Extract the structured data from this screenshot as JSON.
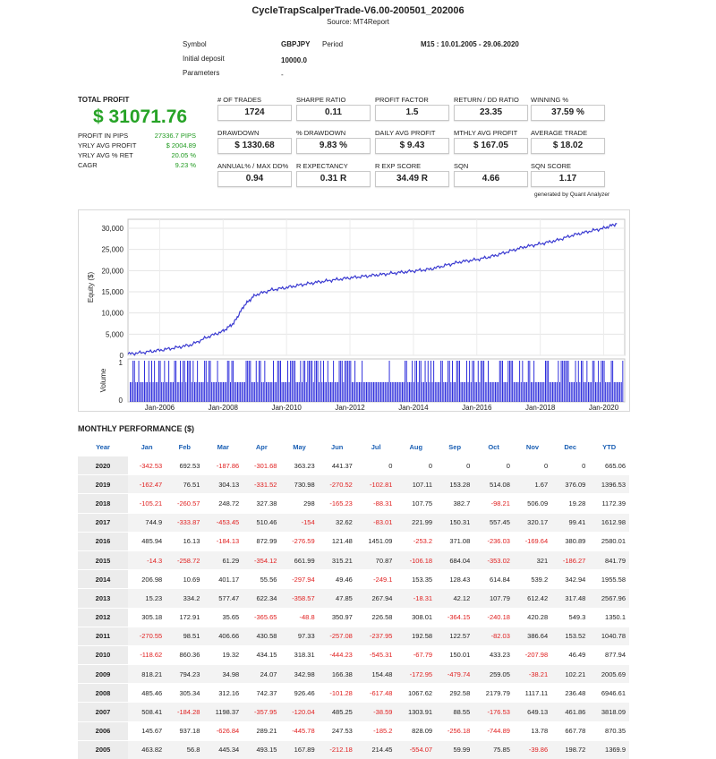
{
  "title": "CycleTrapScalperTrade-V6.00-200501_202006",
  "source": "Source: MT4Report",
  "info": {
    "symbol_label": "Symbol",
    "symbol_value": "GBPJPY",
    "period_label": "Period",
    "period_value": "M15 : 10.01.2005 - 29.06.2020",
    "deposit_label": "Initial deposit",
    "deposit_value": "10000.0",
    "params_label": "Parameters",
    "params_value": "-"
  },
  "profit": {
    "label": "TOTAL PROFIT",
    "value": "$ 31071.76",
    "rows": [
      {
        "label": "PROFIT IN PIPS",
        "value": "27336.7 PIPS"
      },
      {
        "label": "YRLY AVG PROFIT",
        "value": "$ 2004.89"
      },
      {
        "label": "YRLY AVG % RET",
        "value": "20.05 %"
      },
      {
        "label": "CAGR",
        "value": "9.23 %"
      }
    ]
  },
  "metrics": [
    {
      "label": "# OF TRADES",
      "value": "1724"
    },
    {
      "label": "SHARPE RATIO",
      "value": "0.11"
    },
    {
      "label": "PROFIT FACTOR",
      "value": "1.5"
    },
    {
      "label": "RETURN / DD RATIO",
      "value": "23.35"
    },
    {
      "label": "WINNING %",
      "value": "37.59 %"
    },
    {
      "label": "DRAWDOWN",
      "value": "$ 1330.68"
    },
    {
      "label": "% DRAWDOWN",
      "value": "9.83 %"
    },
    {
      "label": "DAILY AVG PROFIT",
      "value": "$ 9.43"
    },
    {
      "label": "MTHLY AVG PROFIT",
      "value": "$ 167.05"
    },
    {
      "label": "AVERAGE TRADE",
      "value": "$ 18.02"
    },
    {
      "label": "ANNUAL% / MAX DD%",
      "value": "0.94"
    },
    {
      "label": "R EXPECTANCY",
      "value": "0.31 R"
    },
    {
      "label": "R EXP SCORE",
      "value": "34.49 R"
    },
    {
      "label": "SQN",
      "value": "4.66"
    },
    {
      "label": "SQN SCORE",
      "value": "1.17"
    }
  ],
  "generated_by": "generated by Quant Analyzer",
  "colors": {
    "line": "#3b3bd1",
    "volume": "#1a1ad8",
    "negative": "#e02020",
    "profit": "#26a326",
    "header": "#1a5fb4"
  },
  "chart_data": {
    "type": "line",
    "ylabel": "Equity ($)",
    "volume_label": "Volume",
    "ylim": [
      0,
      30000
    ],
    "yticks": [
      "30,000",
      "25,000",
      "20,000",
      "15,000",
      "10,000",
      "5,000",
      "0"
    ],
    "xticks": [
      "Jan-2006",
      "Jan-2008",
      "Jan-2010",
      "Jan-2012",
      "Jan-2014",
      "Jan-2016",
      "Jan-2018",
      "Jan-2020"
    ],
    "volume_yticks": [
      "1",
      "0"
    ],
    "x": [
      "2005-01",
      "2005-07",
      "2006-01",
      "2006-07",
      "2007-01",
      "2007-07",
      "2008-01",
      "2008-05",
      "2008-09",
      "2009-01",
      "2009-07",
      "2010-01",
      "2010-07",
      "2011-01",
      "2011-07",
      "2012-01",
      "2012-07",
      "2013-01",
      "2013-07",
      "2014-01",
      "2014-07",
      "2015-01",
      "2015-07",
      "2016-01",
      "2016-07",
      "2017-01",
      "2017-07",
      "2018-01",
      "2018-07",
      "2019-01",
      "2019-07",
      "2020-01",
      "2020-06"
    ],
    "series": [
      {
        "values": [
          300,
          700,
          1200,
          1800,
          2500,
          4300,
          5700,
          7600,
          11800,
          14200,
          15400,
          16000,
          16700,
          17300,
          17800,
          18300,
          18700,
          19100,
          19500,
          19900,
          20300,
          21200,
          22100,
          22600,
          23400,
          24500,
          25600,
          26300,
          27100,
          28300,
          29200,
          30000,
          31071
        ]
      }
    ]
  },
  "monthly": {
    "title": "MONTHLY PERFORMANCE ($)",
    "headers": [
      "Year",
      "Jan",
      "Feb",
      "Mar",
      "Apr",
      "May",
      "Jun",
      "Jul",
      "Aug",
      "Sep",
      "Oct",
      "Nov",
      "Dec",
      "YTD"
    ],
    "rows": [
      [
        "2020",
        "-342.53",
        "692.53",
        "-187.86",
        "-301.68",
        "363.23",
        "441.37",
        "0",
        "0",
        "0",
        "0",
        "0",
        "0",
        "665.06"
      ],
      [
        "2019",
        "-162.47",
        "76.51",
        "304.13",
        "-331.52",
        "730.98",
        "-270.52",
        "-102.81",
        "107.11",
        "153.28",
        "514.08",
        "1.67",
        "376.09",
        "1396.53"
      ],
      [
        "2018",
        "-105.21",
        "-260.57",
        "248.72",
        "327.38",
        "298",
        "-165.23",
        "-88.31",
        "107.75",
        "382.7",
        "-98.21",
        "506.09",
        "19.28",
        "1172.39"
      ],
      [
        "2017",
        "744.9",
        "-333.87",
        "-453.45",
        "510.46",
        "-154",
        "32.62",
        "-83.01",
        "221.99",
        "150.31",
        "557.45",
        "320.17",
        "99.41",
        "1612.98"
      ],
      [
        "2016",
        "485.94",
        "16.13",
        "-184.13",
        "872.99",
        "-276.59",
        "121.48",
        "1451.09",
        "-253.2",
        "371.08",
        "-236.03",
        "-169.64",
        "380.89",
        "2580.01"
      ],
      [
        "2015",
        "-14.3",
        "-258.72",
        "61.29",
        "-354.12",
        "661.99",
        "315.21",
        "70.87",
        "-106.18",
        "684.04",
        "-353.02",
        "321",
        "-186.27",
        "841.79"
      ],
      [
        "2014",
        "206.98",
        "10.69",
        "401.17",
        "55.56",
        "-297.94",
        "49.46",
        "-249.1",
        "153.35",
        "128.43",
        "614.84",
        "539.2",
        "342.94",
        "1955.58"
      ],
      [
        "2013",
        "15.23",
        "334.2",
        "577.47",
        "622.34",
        "-358.57",
        "47.85",
        "267.94",
        "-18.31",
        "42.12",
        "107.79",
        "612.42",
        "317.48",
        "2567.96"
      ],
      [
        "2012",
        "305.18",
        "172.91",
        "35.65",
        "-365.65",
        "-48.8",
        "350.97",
        "226.58",
        "308.01",
        "-364.15",
        "-240.18",
        "420.28",
        "549.3",
        "1350.1"
      ],
      [
        "2011",
        "-270.55",
        "98.51",
        "406.66",
        "430.58",
        "97.33",
        "-257.08",
        "-237.95",
        "192.58",
        "122.57",
        "-82.03",
        "386.64",
        "153.52",
        "1040.78"
      ],
      [
        "2010",
        "-118.62",
        "860.36",
        "19.32",
        "434.15",
        "318.31",
        "-444.23",
        "-545.31",
        "-67.79",
        "150.01",
        "433.23",
        "-207.98",
        "46.49",
        "877.94"
      ],
      [
        "2009",
        "818.21",
        "794.23",
        "34.98",
        "24.07",
        "342.98",
        "166.38",
        "154.48",
        "-172.95",
        "-479.74",
        "259.05",
        "-38.21",
        "102.21",
        "2005.69"
      ],
      [
        "2008",
        "485.46",
        "305.34",
        "312.16",
        "742.37",
        "926.46",
        "-101.28",
        "-617.48",
        "1067.62",
        "292.58",
        "2179.79",
        "1117.11",
        "236.48",
        "6946.61"
      ],
      [
        "2007",
        "508.41",
        "-184.28",
        "1198.37",
        "-357.95",
        "-120.04",
        "485.25",
        "-38.59",
        "1303.91",
        "88.55",
        "-176.53",
        "649.13",
        "461.86",
        "3818.09"
      ],
      [
        "2006",
        "145.67",
        "937.18",
        "-626.84",
        "289.21",
        "-445.78",
        "247.53",
        "-185.2",
        "828.09",
        "-256.18",
        "-744.89",
        "13.78",
        "667.78",
        "870.35"
      ],
      [
        "2005",
        "463.82",
        "56.8",
        "445.34",
        "493.15",
        "167.89",
        "-212.18",
        "214.45",
        "-554.07",
        "59.99",
        "75.85",
        "-39.86",
        "198.72",
        "1369.9"
      ]
    ]
  }
}
